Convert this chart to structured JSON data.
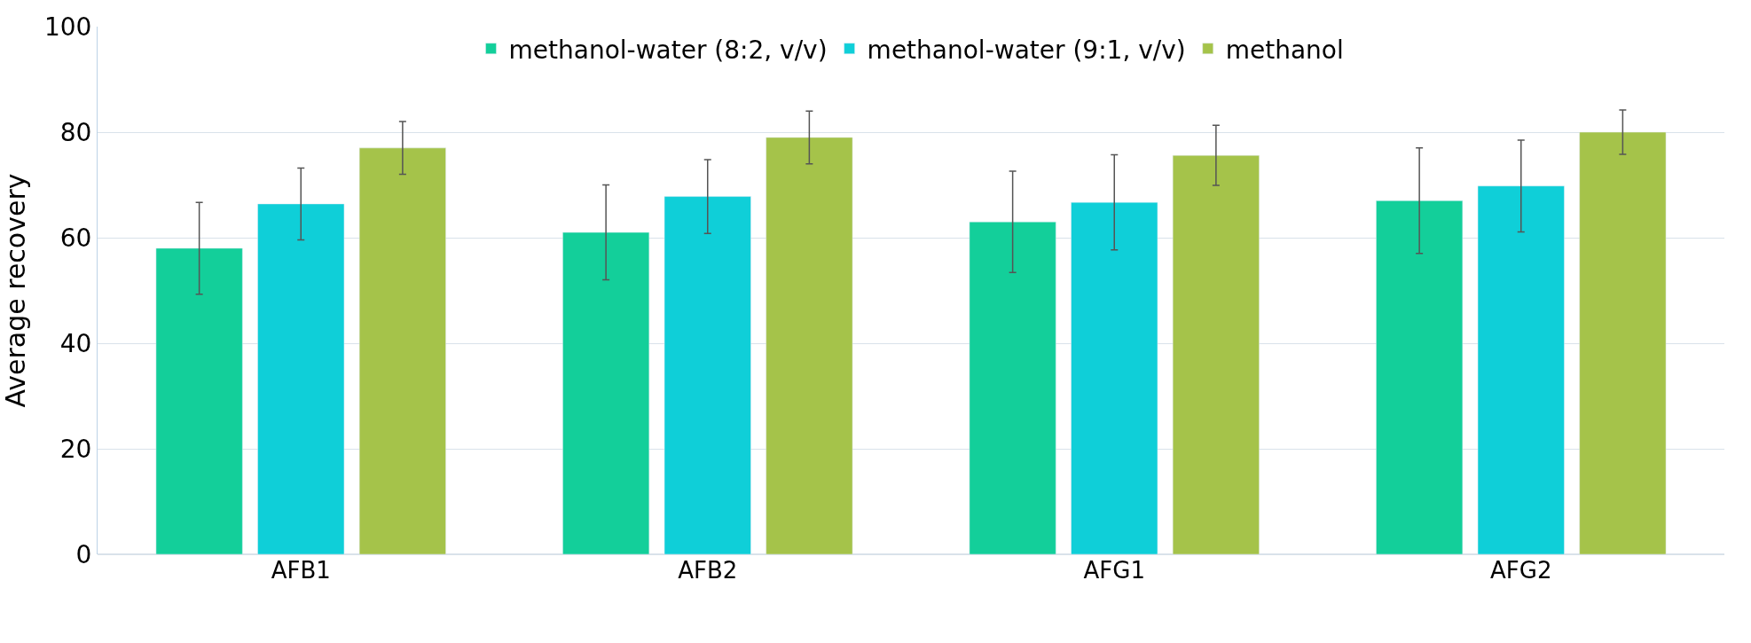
{
  "chart_data": {
    "type": "bar",
    "ylabel": "Average recovery",
    "categories": [
      "AFB1",
      "AFB2",
      "AFG1",
      "AFG2"
    ],
    "series": [
      {
        "name": "methanol-water (8:2, v/v)",
        "color": "#13cf9a",
        "values": [
          58,
          61,
          63,
          67
        ],
        "errors": [
          8.7,
          9,
          9.6,
          10
        ]
      },
      {
        "name": "methanol-water (9:1, v/v)",
        "color": "#0fcfd8",
        "values": [
          66.4,
          67.8,
          66.7,
          69.8
        ],
        "errors": [
          6.8,
          7,
          9,
          8.7
        ]
      },
      {
        "name": "methanol",
        "color": "#a5c34a",
        "values": [
          77,
          79,
          75.6,
          80
        ],
        "errors": [
          5,
          5,
          5.7,
          4.2
        ]
      }
    ],
    "ylim": [
      0,
      100
    ],
    "yticks": [
      0,
      20,
      40,
      60,
      80,
      100
    ],
    "grid": "y",
    "legend": "top"
  }
}
